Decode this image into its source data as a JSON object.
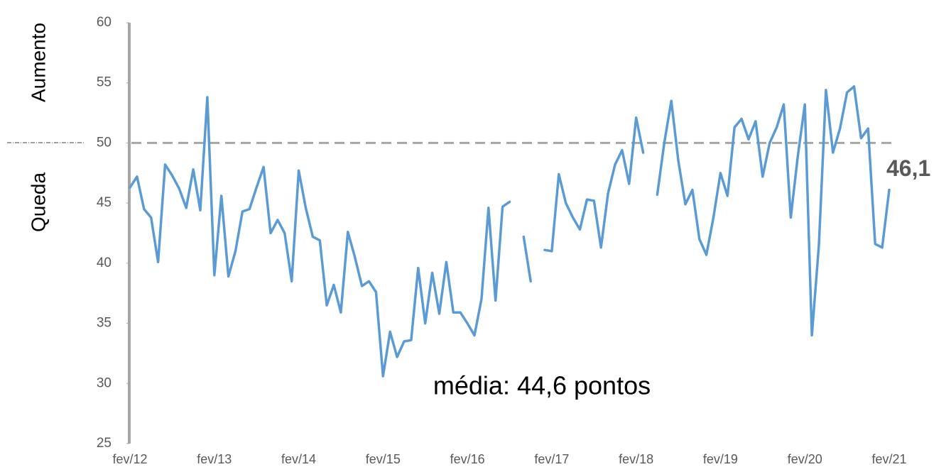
{
  "chart_data": {
    "type": "line",
    "categories": [
      "fev/12",
      null,
      null,
      null,
      null,
      null,
      null,
      null,
      null,
      null,
      null,
      null,
      "fev/13",
      null,
      null,
      null,
      null,
      null,
      null,
      null,
      null,
      null,
      null,
      null,
      "fev/14",
      null,
      null,
      null,
      null,
      null,
      null,
      null,
      null,
      null,
      null,
      null,
      "fev/15",
      null,
      null,
      null,
      null,
      null,
      null,
      null,
      null,
      null,
      null,
      null,
      "fev/16",
      null,
      null,
      null,
      null,
      null,
      null,
      null,
      null,
      null,
      null,
      null,
      "fev/17",
      null,
      null,
      null,
      null,
      null,
      null,
      null,
      null,
      null,
      null,
      null,
      "fev/18",
      null,
      null,
      null,
      null,
      null,
      null,
      null,
      null,
      null,
      null,
      null,
      "fev/19",
      null,
      null,
      null,
      null,
      null,
      null,
      null,
      null,
      null,
      null,
      null,
      "fev/20",
      null,
      null,
      null,
      null,
      null,
      null,
      null,
      null,
      null,
      null,
      null,
      "fev/21"
    ],
    "series": [
      {
        "color": "#5b9bd5",
        "values": [
          46.3,
          47.2,
          44.5,
          43.8,
          40.1,
          48.2,
          47.3,
          46.2,
          44.6,
          47.8,
          44.4,
          53.8,
          39.0,
          45.6,
          38.9,
          41.0,
          44.3,
          44.5,
          46.3,
          48.0,
          42.5,
          43.6,
          42.5,
          38.5,
          47.7,
          44.6,
          42.2,
          41.9,
          36.5,
          38.2,
          35.9,
          42.6,
          40.5,
          38.1,
          38.5,
          37.6,
          30.6,
          34.3,
          32.2,
          33.5,
          33.6,
          39.6,
          35.0,
          39.2,
          35.8,
          40.1,
          35.9,
          35.9,
          35.0,
          34.0,
          37.0,
          44.6,
          36.9,
          44.7,
          45.1,
          null,
          42.2,
          38.5,
          null,
          41.1,
          41.0,
          47.4,
          45.0,
          43.8,
          42.8,
          45.3,
          45.2,
          41.3,
          45.8,
          48.2,
          49.4,
          46.6,
          52.1,
          49.2,
          null,
          45.7,
          50.0,
          53.5,
          48.5,
          44.9,
          46.1,
          42.0,
          40.7,
          43.8,
          47.5,
          45.6,
          51.3,
          52.0,
          50.3,
          51.8,
          47.2,
          50.0,
          51.3,
          53.2,
          43.8,
          48.9,
          53.2,
          34.0,
          41.5,
          54.4,
          49.2,
          51.2,
          54.2,
          54.7,
          50.4,
          51.2,
          41.6,
          41.3,
          46.1
        ],
        "value_labels": [
          null,
          null,
          null,
          null,
          null,
          null,
          null,
          null,
          null,
          null,
          null,
          null,
          null,
          null,
          null,
          null,
          null,
          null,
          null,
          null,
          null,
          null,
          null,
          null,
          null,
          null,
          null,
          null,
          null,
          null,
          null,
          null,
          null,
          null,
          null,
          null,
          null,
          null,
          null,
          null,
          null,
          null,
          null,
          null,
          null,
          null,
          null,
          null,
          null,
          null,
          null,
          null,
          null,
          null,
          null,
          null,
          null,
          null,
          null,
          null,
          null,
          null,
          null,
          null,
          null,
          null,
          null,
          null,
          null,
          null,
          null,
          null,
          null,
          null,
          null,
          null,
          null,
          null,
          null,
          null,
          null,
          null,
          null,
          null,
          null,
          null,
          null,
          null,
          null,
          null,
          null,
          null,
          null,
          null,
          null,
          null,
          null,
          null,
          null,
          null,
          null,
          null,
          null,
          null,
          null,
          null,
          null,
          null,
          "46,1"
        ]
      }
    ],
    "ylim": [
      25,
      60
    ],
    "yticks": [
      25,
      30,
      35,
      40,
      45,
      50,
      55,
      60
    ],
    "reference_line": 50,
    "axis_labels_upper": "Aumento",
    "axis_labels_lower": "Queda",
    "annotation": "média: 44,6 pontos"
  }
}
